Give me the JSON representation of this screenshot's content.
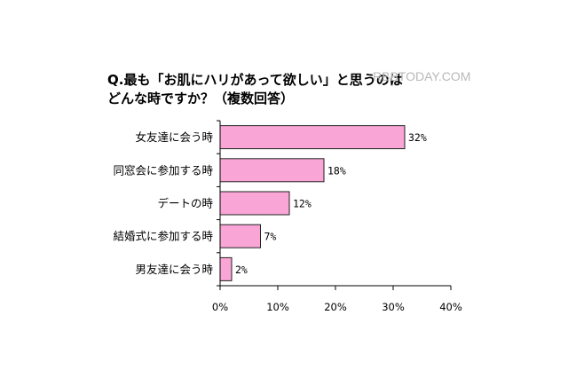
{
  "title_line1": "Q.最も「お肌にハリがあって欲しい」と思うのは",
  "title_line2": "どんな時ですか？（複数回答）",
  "watermark": "RBBTODAY.COM",
  "colors": {
    "bar_fill": "#f9a6d6",
    "bar_stroke": "#222222",
    "axis": "#000000"
  },
  "chart_data": {
    "type": "bar",
    "orientation": "horizontal",
    "title": "Q.最も「お肌にハリがあって欲しい」と思うのはどんな時ですか？（複数回答）",
    "categories": [
      "女友達に会う時",
      "同窓会に参加する時",
      "デートの時",
      "結婚式に参加する時",
      "男友達に会う時"
    ],
    "values": [
      32,
      18,
      12,
      7,
      2
    ],
    "value_labels": [
      "32%",
      "18%",
      "12%",
      "7%",
      "2%"
    ],
    "xlim": [
      0,
      40
    ],
    "xticks": [
      0,
      10,
      20,
      30,
      40
    ],
    "xtick_labels": [
      "0%",
      "10%",
      "20%",
      "30%",
      "40%"
    ],
    "grid": false,
    "legend": "none"
  }
}
